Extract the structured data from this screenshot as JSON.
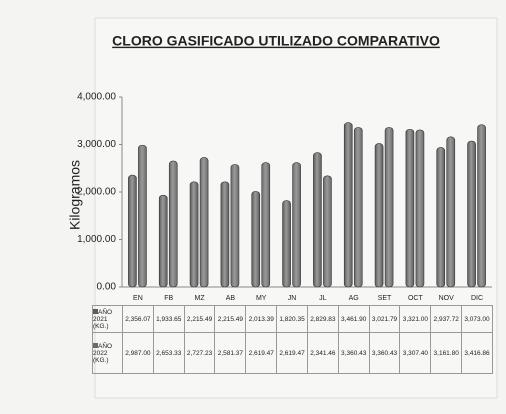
{
  "chart_data": {
    "type": "bar",
    "title": "CLORO GASIFICADO UTILIZADO COMPARATIVO",
    "y_label": "Kilogramos",
    "categories": [
      "EN",
      "FB",
      "MZ",
      "AB",
      "MY",
      "JN",
      "JL",
      "AG",
      "SET",
      "OCT",
      "NOV",
      "DIC"
    ],
    "series": [
      {
        "name": "AÑO 2021 (KG.)",
        "color": "#5c5c5c",
        "values": [
          2356.07,
          1933.65,
          2215.49,
          2215.49,
          2013.39,
          1820.35,
          2829.83,
          3461.9,
          3021.79,
          3321.0,
          2937.72,
          3073.0
        ],
        "value_labels": [
          "2,356.07",
          "1,933.65",
          "2,215.49",
          "2,215.49",
          "2,013.39",
          "1,820.35",
          "2,829.83",
          "3,461.90",
          "3,021.79",
          "3,321.00",
          "2,937.72",
          "3,073.00"
        ]
      },
      {
        "name": "AÑO 2022 (KG.)",
        "color": "#6a6a6a",
        "values": [
          2987.0,
          2653.33,
          2727.23,
          2581.37,
          2619.47,
          2619.47,
          2341.46,
          3360.43,
          3360.43,
          3307.4,
          3161.8,
          3416.86
        ],
        "value_labels": [
          "2,987.00",
          "2,653.33",
          "2,727.23",
          "2,581.37",
          "2,619.47",
          "2,619.47",
          "2,341.46",
          "3,360.43",
          "3,360.43",
          "3,307.40",
          "3,161.80",
          "3,416.86"
        ]
      }
    ],
    "ylim": [
      0,
      4000
    ],
    "yticks": [
      {
        "value": 0,
        "label": "0.00"
      },
      {
        "value": 1000,
        "label": "1,000.00"
      },
      {
        "value": 2000,
        "label": "2,000.00"
      },
      {
        "value": 3000,
        "label": "3,000.00"
      },
      {
        "value": 4000,
        "label": "4,000.00"
      }
    ],
    "grid": false
  }
}
